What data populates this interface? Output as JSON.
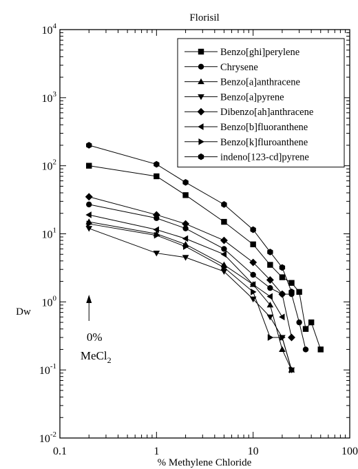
{
  "chart_data": {
    "type": "scatter",
    "title": "Florisil",
    "xlabel": "% Methylene Chloride",
    "ylabel": "Dw",
    "x_scale": "log",
    "y_scale": "log",
    "xlim": [
      0.1,
      100
    ],
    "ylim": [
      0.01,
      10000
    ],
    "x_ticks": [
      {
        "value": 0.1,
        "label": "0.1"
      },
      {
        "value": 1,
        "label": "1"
      },
      {
        "value": 10,
        "label": "10"
      },
      {
        "value": 100,
        "label": "100"
      }
    ],
    "y_ticks": [
      {
        "value": 0.01,
        "base": "10",
        "exp": "-2"
      },
      {
        "value": 0.1,
        "base": "10",
        "exp": "-1"
      },
      {
        "value": 1,
        "base": "10",
        "exp": "0"
      },
      {
        "value": 10,
        "base": "10",
        "exp": "1"
      },
      {
        "value": 100,
        "base": "10",
        "exp": "2"
      },
      {
        "value": 1000,
        "base": "10",
        "exp": "3"
      },
      {
        "value": 10000,
        "base": "10",
        "exp": "4"
      }
    ],
    "grid": false,
    "legend_position": "top-right",
    "annotation": {
      "line1": "0%",
      "line2_main": "MeCl",
      "line2_sub": "2",
      "arrow_x": 0.2
    },
    "series": [
      {
        "name": "Benzo[ghi]perylene",
        "marker": "square",
        "x": [
          0.2,
          1,
          2,
          5,
          10,
          15,
          20,
          25,
          30,
          35,
          40,
          50
        ],
        "y": [
          100,
          70,
          37,
          15,
          7,
          3.5,
          2.3,
          1.9,
          1.4,
          0.4,
          0.5,
          0.2
        ]
      },
      {
        "name": "Chrysene",
        "marker": "circle",
        "x": [
          0.2,
          1,
          2,
          5,
          10,
          15,
          20,
          25,
          30,
          35
        ],
        "y": [
          27,
          17,
          12,
          6,
          2.5,
          1.6,
          1.3,
          1.3,
          0.5,
          0.2
        ]
      },
      {
        "name": "Benzo[a]anthracene",
        "marker": "triangle-up",
        "x": [
          0.2,
          1,
          2,
          5,
          10,
          15,
          20,
          25
        ],
        "y": [
          15,
          10,
          7,
          3.5,
          1.8,
          0.9,
          0.2,
          0.1
        ]
      },
      {
        "name": "Benzo[a]pyrene",
        "marker": "triangle-down",
        "x": [
          0.2,
          1,
          2,
          5,
          10,
          15,
          20,
          25
        ],
        "y": [
          12,
          5.2,
          4.5,
          2.8,
          1.1,
          0.6,
          0.3,
          0.1
        ]
      },
      {
        "name": "Dibenzo[ah]anthracene",
        "marker": "diamond",
        "x": [
          0.2,
          1,
          2,
          5,
          10,
          15,
          20,
          25
        ],
        "y": [
          35,
          19,
          14,
          8,
          3.8,
          2.1,
          1.3,
          0.3
        ]
      },
      {
        "name": "Benzo[b]fluoranthene",
        "marker": "triangle-left",
        "x": [
          0.2,
          1,
          2,
          5,
          10,
          15,
          20
        ],
        "y": [
          19,
          11.5,
          8.5,
          5,
          1.8,
          1.2,
          0.6
        ]
      },
      {
        "name": "Benzo[k]fluroanthene",
        "marker": "triangle-right",
        "x": [
          0.2,
          1,
          2,
          5,
          10,
          15,
          20,
          25
        ],
        "y": [
          14,
          9.5,
          6.5,
          3.2,
          1.4,
          0.3,
          0.3,
          0.1
        ]
      },
      {
        "name": "indeno[123-cd]pyrene",
        "marker": "hexagon",
        "x": [
          0.2,
          1,
          2,
          5,
          10,
          15,
          20,
          25
        ],
        "y": [
          200,
          105,
          57,
          27,
          11.5,
          5.4,
          3.2,
          1.4
        ]
      }
    ]
  }
}
